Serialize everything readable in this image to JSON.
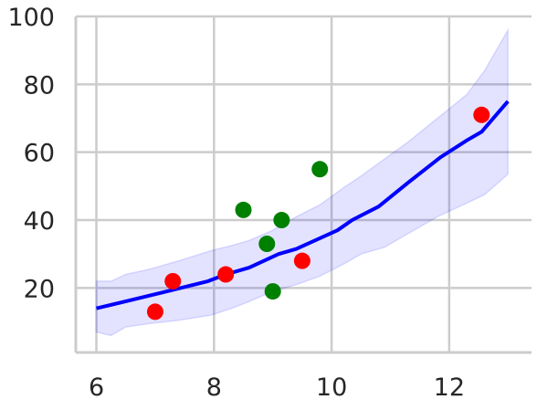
{
  "chart_data": {
    "type": "scatter",
    "title": "",
    "xlabel": "",
    "ylabel": "",
    "xlim": [
      5.65,
      13.4
    ],
    "ylim": [
      1,
      100
    ],
    "grid": true,
    "xticks": [
      6,
      8,
      10,
      12
    ],
    "yticks": [
      20,
      40,
      60,
      80,
      100
    ],
    "colors": {
      "line": "#0000ff",
      "band": "#0000ff",
      "grid": "#cccccc",
      "spine": "#cccccc",
      "red": "#ff0000",
      "green": "#008000"
    },
    "line": {
      "x": [
        6.0,
        6.6,
        7.2,
        7.9,
        8.2,
        8.6,
        9.1,
        9.4,
        10.1,
        10.35,
        10.8,
        11.3,
        11.85,
        12.3,
        12.55,
        13.0
      ],
      "y": [
        14,
        16.5,
        19,
        22,
        24,
        26,
        30,
        31.5,
        37,
        40,
        44,
        51,
        58.5,
        63.5,
        66,
        75
      ]
    },
    "band": {
      "x": [
        6.0,
        6.25,
        6.5,
        6.9,
        7.4,
        7.95,
        8.3,
        8.6,
        9.0,
        9.4,
        9.8,
        10.2,
        10.5,
        10.9,
        11.3,
        11.8,
        12.3,
        12.6,
        13.0
      ],
      "lower": [
        7,
        6,
        8.5,
        9.5,
        10.5,
        12,
        14,
        16,
        19,
        21,
        23.5,
        27,
        30,
        32,
        36,
        41,
        45,
        47.5,
        53.5
      ],
      "upper": [
        22,
        22,
        24,
        25.5,
        28,
        31,
        32.5,
        34,
        37,
        41,
        44.5,
        49.5,
        53,
        58,
        63,
        70,
        77,
        84,
        96
      ]
    },
    "series": [
      {
        "color": "red",
        "x": [
          7.0,
          7.3,
          8.2,
          9.5,
          12.55
        ],
        "y": [
          13,
          22,
          24,
          28,
          71
        ]
      },
      {
        "color": "green",
        "x": [
          8.5,
          8.9,
          9.0,
          9.15,
          9.8
        ],
        "y": [
          43,
          33,
          19,
          40,
          55
        ]
      }
    ]
  }
}
